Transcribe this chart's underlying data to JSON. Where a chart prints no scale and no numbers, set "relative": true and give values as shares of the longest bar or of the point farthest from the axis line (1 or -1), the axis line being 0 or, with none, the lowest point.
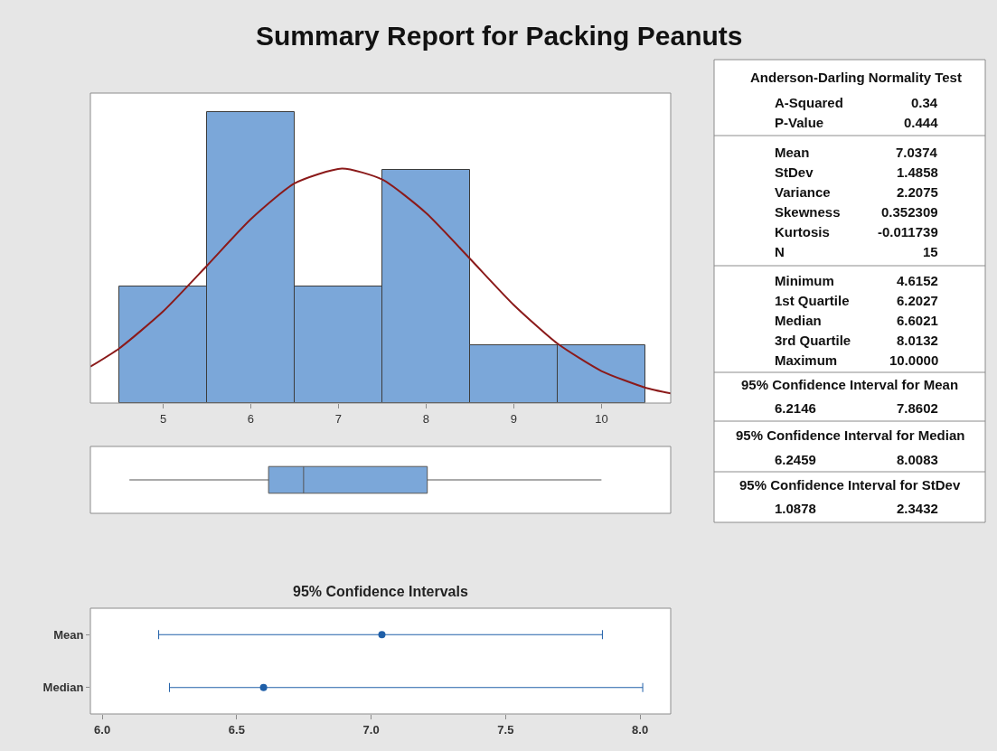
{
  "chart_data": [
    {
      "type": "histogram",
      "title": "Summary Report for Packing Peanuts",
      "relative": true,
      "bins": [
        4.5,
        5.5,
        6.5,
        7.5,
        8.5,
        9.5,
        10.5
      ],
      "xlim": [
        4.17,
        10.79
      ],
      "xticks": [
        5,
        6,
        7,
        8,
        9,
        10
      ],
      "tick_labels": "x",
      "series": [
        {
          "type": "histogram",
          "color": "#7ba7d9",
          "values": [
            0.4,
            1,
            0.4,
            0.8,
            0.2,
            0.2
          ]
        },
        {
          "type": "line",
          "color": "#8b1a1a",
          "x": [
            4.17,
            4.5,
            5,
            5.5,
            6,
            6.5,
            7.04,
            7.5,
            8,
            8.5,
            9,
            9.5,
            10,
            10.5,
            10.79
          ],
          "values": [
            0.125,
            0.188,
            0.315,
            0.472,
            0.632,
            0.755,
            0.806,
            0.768,
            0.653,
            0.496,
            0.337,
            0.204,
            0.11,
            0.053,
            0.033
          ]
        }
      ]
    },
    {
      "type": "other",
      "title": "Anderson-Darling Normality Test",
      "annotations": [
        "A-Squared",
        "0.34",
        "P-Value",
        "0.444",
        "Mean",
        "7.0374",
        "StDev",
        "1.4858",
        "Variance",
        "2.2075",
        "Skewness",
        "0.352309",
        "Kurtosis",
        "-0.011739",
        "N",
        "15",
        "Minimum",
        "4.6152",
        "1st Quartile",
        "6.2027",
        "Median",
        "6.6021",
        "3rd Quartile",
        "8.0132",
        "Maximum",
        "10.0000",
        "95% Confidence Interval for Mean",
        "6.2146",
        "7.8602",
        "95% Confidence Interval for Median",
        "6.2459",
        "8.0083",
        "95% Confidence Interval for StDev",
        "1.0878",
        "2.3432"
      ]
    },
    {
      "type": "box",
      "orientation": "horizontal",
      "categories": [
        null
      ],
      "color": "#7ba7d9",
      "xlim": [
        4.17,
        10.79
      ],
      "tick_labels": false,
      "boxes": [
        {
          "low": 4.6152,
          "q1": 6.2027,
          "median": 6.6021,
          "q3": 8.0132,
          "high": 10.0
        }
      ]
    },
    {
      "type": "scatter",
      "orientation": "horizontal",
      "title": "95% Confidence Intervals",
      "categories": [
        "Mean",
        "Median"
      ],
      "values": [
        7.04,
        6.6
      ],
      "errors": [
        [
          6.21,
          7.86
        ],
        [
          6.25,
          8.01
        ]
      ],
      "color": "#1f5fa8",
      "marker": "circle",
      "xlim": [
        5.956,
        8.114
      ],
      "xticks": [
        {
          "value": 6,
          "label": "6.0"
        },
        {
          "value": 6.5,
          "label": "6.5"
        },
        {
          "value": 7,
          "label": "7.0"
        },
        {
          "value": 7.5,
          "label": "7.5"
        },
        {
          "value": 8,
          "label": "8.0"
        }
      ]
    }
  ]
}
